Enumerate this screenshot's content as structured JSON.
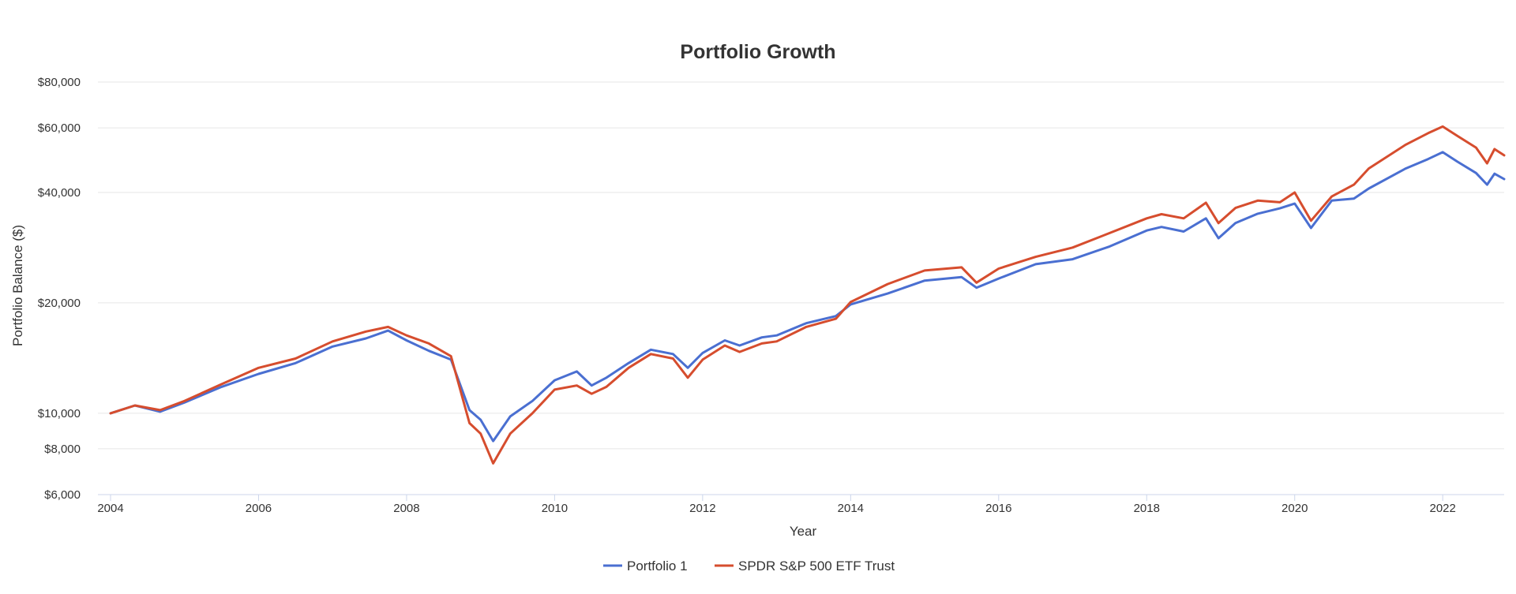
{
  "chart_data": {
    "type": "line",
    "title": "Portfolio Growth",
    "xlabel": "Year",
    "ylabel": "Portfolio Balance ($)",
    "yscale": "log",
    "xlim": [
      2004.0,
      2022.83
    ],
    "ylim": [
      6000,
      80000
    ],
    "yticks": [
      6000,
      8000,
      10000,
      20000,
      40000,
      60000,
      80000
    ],
    "ytick_labels": [
      "$6,000",
      "$8,000",
      "$10,000",
      "$20,000",
      "$40,000",
      "$60,000",
      "$80,000"
    ],
    "xticks": [
      2004,
      2006,
      2008,
      2010,
      2012,
      2014,
      2016,
      2018,
      2020,
      2022
    ],
    "xtick_labels": [
      "2004",
      "2006",
      "2008",
      "2010",
      "2012",
      "2014",
      "2016",
      "2018",
      "2020",
      "2022"
    ],
    "grid": true,
    "legend_position": "bottom-center",
    "series": [
      {
        "name": "Portfolio 1",
        "color": "#4a6fd1",
        "x": [
          2004.0,
          2004.33,
          2004.67,
          2005.0,
          2005.5,
          2006.0,
          2006.5,
          2007.0,
          2007.45,
          2007.75,
          2008.0,
          2008.3,
          2008.6,
          2008.85,
          2009.0,
          2009.17,
          2009.4,
          2009.7,
          2010.0,
          2010.3,
          2010.5,
          2010.7,
          2011.0,
          2011.3,
          2011.6,
          2011.8,
          2012.0,
          2012.3,
          2012.5,
          2012.8,
          2013.0,
          2013.4,
          2013.8,
          2014.0,
          2014.5,
          2015.0,
          2015.5,
          2015.7,
          2016.0,
          2016.5,
          2017.0,
          2017.5,
          2018.0,
          2018.2,
          2018.5,
          2018.8,
          2018.97,
          2019.2,
          2019.5,
          2019.8,
          2020.0,
          2020.22,
          2020.5,
          2020.8,
          2021.0,
          2021.5,
          2021.8,
          2022.0,
          2022.2,
          2022.45,
          2022.6,
          2022.7,
          2022.83
        ],
        "values": [
          10000,
          10500,
          10100,
          10700,
          11800,
          12800,
          13700,
          15200,
          16000,
          16800,
          15800,
          14800,
          14000,
          10200,
          9600,
          8400,
          9800,
          10800,
          12300,
          13000,
          11900,
          12500,
          13700,
          14900,
          14500,
          13300,
          14600,
          15800,
          15300,
          16100,
          16300,
          17600,
          18400,
          19800,
          21200,
          23000,
          23500,
          22000,
          23300,
          25500,
          26300,
          28500,
          31500,
          32200,
          31300,
          34000,
          30000,
          33000,
          35000,
          36200,
          37300,
          32000,
          38000,
          38500,
          41000,
          46500,
          49300,
          51500,
          48500,
          45200,
          42000,
          45000,
          43500
        ]
      },
      {
        "name": "SPDR S&P 500 ETF Trust",
        "color": "#d64d2e",
        "x": [
          2004.0,
          2004.33,
          2004.67,
          2005.0,
          2005.5,
          2006.0,
          2006.5,
          2007.0,
          2007.45,
          2007.75,
          2008.0,
          2008.3,
          2008.6,
          2008.85,
          2009.0,
          2009.17,
          2009.4,
          2009.7,
          2010.0,
          2010.3,
          2010.5,
          2010.7,
          2011.0,
          2011.3,
          2011.6,
          2011.8,
          2012.0,
          2012.3,
          2012.5,
          2012.8,
          2013.0,
          2013.4,
          2013.8,
          2014.0,
          2014.5,
          2015.0,
          2015.5,
          2015.7,
          2016.0,
          2016.5,
          2017.0,
          2017.5,
          2018.0,
          2018.2,
          2018.5,
          2018.8,
          2018.97,
          2019.2,
          2019.5,
          2019.8,
          2020.0,
          2020.22,
          2020.5,
          2020.8,
          2021.0,
          2021.5,
          2021.8,
          2022.0,
          2022.2,
          2022.45,
          2022.6,
          2022.7,
          2022.83
        ],
        "values": [
          10000,
          10500,
          10200,
          10800,
          12000,
          13300,
          14100,
          15700,
          16700,
          17200,
          16300,
          15500,
          14300,
          9400,
          8800,
          7300,
          8800,
          10000,
          11600,
          11900,
          11300,
          11800,
          13300,
          14500,
          14100,
          12500,
          14000,
          15300,
          14700,
          15500,
          15700,
          17200,
          18100,
          20100,
          22500,
          24500,
          25000,
          22700,
          24800,
          26700,
          28300,
          31000,
          34000,
          34900,
          34000,
          37500,
          33000,
          36300,
          38000,
          37600,
          40000,
          33500,
          39000,
          42000,
          46500,
          54000,
          58000,
          60500,
          57000,
          53000,
          48000,
          52500,
          50500
        ]
      }
    ]
  }
}
